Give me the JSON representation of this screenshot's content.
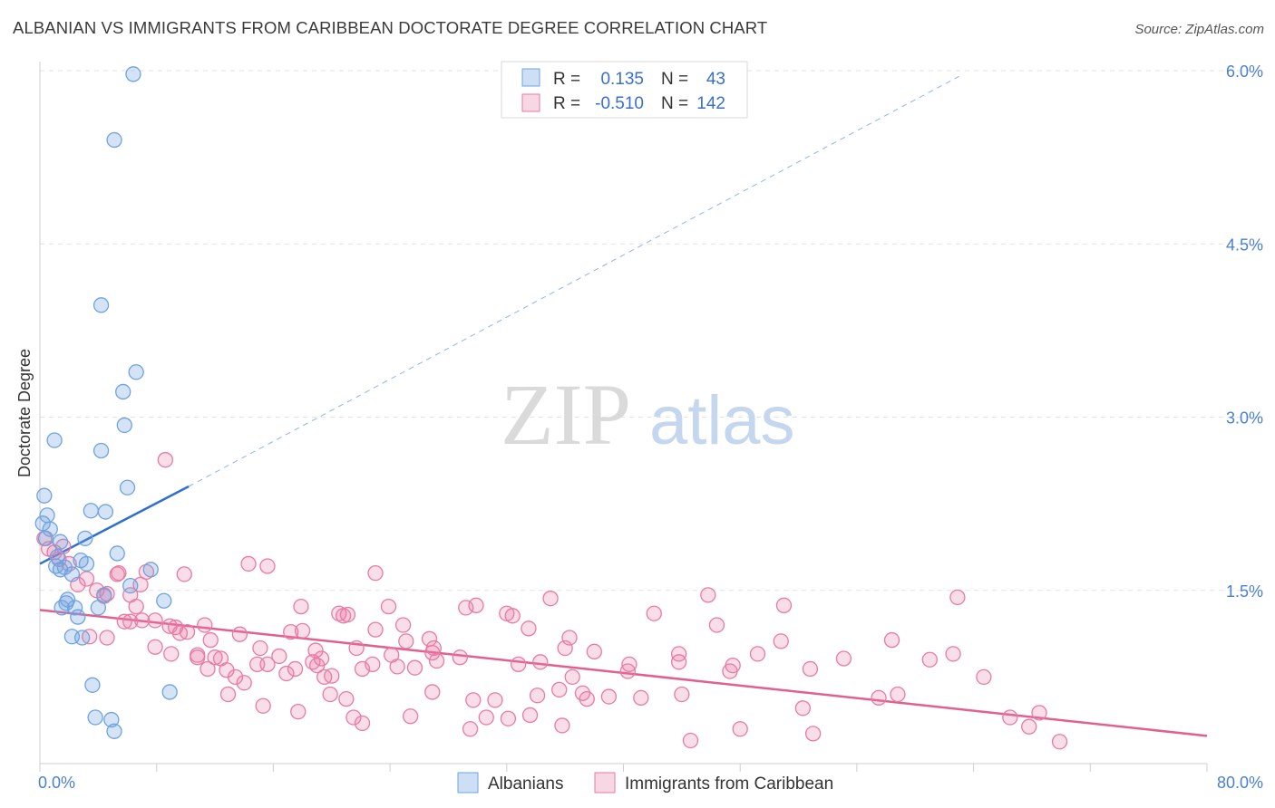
{
  "title": "ALBANIAN VS IMMIGRANTS FROM CARIBBEAN DOCTORATE DEGREE CORRELATION CHART",
  "source": "Source: ZipAtlas.com",
  "watermark": {
    "zip": "ZIP",
    "atlas": "atlas"
  },
  "colors": {
    "blue": "#6fa3e0",
    "blue_fill": "rgba(111,163,224,0.30)",
    "blue_line": "#2f6fd0",
    "pink": "#e97aa5",
    "pink_fill": "rgba(233,122,165,0.25)",
    "pink_line": "#e0608f",
    "grid": "#e3e3e3",
    "tick_text": "#4a7fd4"
  },
  "legend": {
    "rows": [
      {
        "r_label": "R =",
        "r_value": "0.135",
        "n_label": "N =",
        "n_value": "43"
      },
      {
        "r_label": "R =",
        "r_value": "-0.510",
        "n_label": "N =",
        "n_value": "142"
      }
    ]
  },
  "bottom_legend": [
    "Albanians",
    "Immigrants from Caribbean"
  ],
  "chart_data": {
    "type": "scatter",
    "ylabel": "Doctorate Degree",
    "xlim": [
      0,
      80
    ],
    "ylim": [
      0,
      6.0
    ],
    "x_tick_labels": [
      "0.0%",
      "80.0%"
    ],
    "y_ticks": [
      1.5,
      3.0,
      4.5,
      6.0
    ],
    "y_tick_labels": [
      "1.5%",
      "3.0%",
      "4.5%",
      "6.0%"
    ],
    "grid": true,
    "legend_position": "top-center",
    "series": [
      {
        "name": "Albanians",
        "r": 0.135,
        "n": 43,
        "trend": {
          "x0": 0,
          "y0": 1.73,
          "x1": 10.2,
          "y1": 2.4,
          "dash_x1": 63,
          "dash_y1": 5.95
        },
        "points": [
          [
            6.4,
            5.97
          ],
          [
            5.1,
            5.4
          ],
          [
            4.2,
            3.97
          ],
          [
            6.6,
            3.39
          ],
          [
            5.7,
            3.22
          ],
          [
            5.8,
            2.93
          ],
          [
            1.0,
            2.8
          ],
          [
            4.2,
            2.71
          ],
          [
            6.0,
            2.39
          ],
          [
            0.3,
            2.32
          ],
          [
            0.5,
            2.15
          ],
          [
            3.5,
            2.19
          ],
          [
            4.5,
            2.18
          ],
          [
            0.2,
            2.08
          ],
          [
            0.7,
            2.03
          ],
          [
            1.4,
            1.92
          ],
          [
            3.1,
            1.95
          ],
          [
            0.4,
            1.95
          ],
          [
            5.3,
            1.82
          ],
          [
            1.2,
            1.79
          ],
          [
            2.8,
            1.76
          ],
          [
            3.2,
            1.73
          ],
          [
            1.7,
            1.7
          ],
          [
            1.4,
            1.68
          ],
          [
            1.1,
            1.71
          ],
          [
            7.6,
            1.68
          ],
          [
            2.2,
            1.64
          ],
          [
            6.2,
            1.54
          ],
          [
            4.4,
            1.46
          ],
          [
            1.9,
            1.42
          ],
          [
            8.5,
            1.41
          ],
          [
            1.8,
            1.39
          ],
          [
            2.4,
            1.35
          ],
          [
            4.0,
            1.35
          ],
          [
            2.6,
            1.27
          ],
          [
            2.2,
            1.1
          ],
          [
            2.9,
            1.09
          ],
          [
            3.6,
            0.68
          ],
          [
            8.9,
            0.62
          ],
          [
            3.8,
            0.4
          ],
          [
            4.9,
            0.38
          ],
          [
            5.1,
            0.28
          ],
          [
            1.5,
            1.35
          ]
        ]
      },
      {
        "name": "Immigrants from Caribbean",
        "r": -0.51,
        "n": 142,
        "trend": {
          "x0": 0,
          "y0": 1.33,
          "x1": 80,
          "y1": 0.24
        },
        "points": [
          [
            8.6,
            2.63
          ],
          [
            0.3,
            1.95
          ],
          [
            0.6,
            1.86
          ],
          [
            1.0,
            1.83
          ],
          [
            1.6,
            1.88
          ],
          [
            1.3,
            1.77
          ],
          [
            2.0,
            1.73
          ],
          [
            3.2,
            1.6
          ],
          [
            2.6,
            1.55
          ],
          [
            4.6,
            1.47
          ],
          [
            5.3,
            1.64
          ],
          [
            5.4,
            1.65
          ],
          [
            7.3,
            1.66
          ],
          [
            9.9,
            1.64
          ],
          [
            14.3,
            1.73
          ],
          [
            15.6,
            1.71
          ],
          [
            23.0,
            1.65
          ],
          [
            3.9,
            1.5
          ],
          [
            4.4,
            1.45
          ],
          [
            6.2,
            1.46
          ],
          [
            6.6,
            1.36
          ],
          [
            7.0,
            1.24
          ],
          [
            6.9,
            1.55
          ],
          [
            7.9,
            1.24
          ],
          [
            8.9,
            1.19
          ],
          [
            9.3,
            1.18
          ],
          [
            10.1,
            1.14
          ],
          [
            11.3,
            1.2
          ],
          [
            11.7,
            1.07
          ],
          [
            12.0,
            0.92
          ],
          [
            13.7,
            1.12
          ],
          [
            17.2,
            1.14
          ],
          [
            18.0,
            1.15
          ],
          [
            17.9,
            1.36
          ],
          [
            20.5,
            1.3
          ],
          [
            20.8,
            1.28
          ],
          [
            21.1,
            1.29
          ],
          [
            23.9,
            1.36
          ],
          [
            23.0,
            1.16
          ],
          [
            24.9,
            1.2
          ],
          [
            26.7,
            1.08
          ],
          [
            26.9,
            0.96
          ],
          [
            27.0,
            1.0
          ],
          [
            29.2,
            1.35
          ],
          [
            29.9,
            1.37
          ],
          [
            32.0,
            1.3
          ],
          [
            32.4,
            1.28
          ],
          [
            35.0,
            1.43
          ],
          [
            36.3,
            1.09
          ],
          [
            36.0,
            1.0
          ],
          [
            38.0,
            0.97
          ],
          [
            40.4,
            0.86
          ],
          [
            42.1,
            1.3
          ],
          [
            43.8,
            0.95
          ],
          [
            45.8,
            1.46
          ],
          [
            46.4,
            1.2
          ],
          [
            47.5,
            0.85
          ],
          [
            49.2,
            0.95
          ],
          [
            50.8,
            1.06
          ],
          [
            51.0,
            1.37
          ],
          [
            55.1,
            0.91
          ],
          [
            58.4,
            1.07
          ],
          [
            58.8,
            0.6
          ],
          [
            62.6,
            0.95
          ],
          [
            62.9,
            1.44
          ],
          [
            64.7,
            0.75
          ],
          [
            67.8,
            0.32
          ],
          [
            68.5,
            0.44
          ],
          [
            69.9,
            0.19
          ],
          [
            66.5,
            0.4
          ],
          [
            3.4,
            1.1
          ],
          [
            4.6,
            1.09
          ],
          [
            5.8,
            1.23
          ],
          [
            6.2,
            1.23
          ],
          [
            7.9,
            1.01
          ],
          [
            9.6,
            1.13
          ],
          [
            10.8,
            0.94
          ],
          [
            11.5,
            0.82
          ],
          [
            12.8,
            0.81
          ],
          [
            12.9,
            0.6
          ],
          [
            13.4,
            0.75
          ],
          [
            14.0,
            0.7
          ],
          [
            15.1,
            1.0
          ],
          [
            15.6,
            0.86
          ],
          [
            16.4,
            0.93
          ],
          [
            17.5,
            0.82
          ],
          [
            18.7,
            0.88
          ],
          [
            19.5,
            0.75
          ],
          [
            19.3,
            0.91
          ],
          [
            20.0,
            0.76
          ],
          [
            21.0,
            0.56
          ],
          [
            21.5,
            0.4
          ],
          [
            22.1,
            0.82
          ],
          [
            22.8,
            0.86
          ],
          [
            24.1,
            0.94
          ],
          [
            24.5,
            0.84
          ],
          [
            25.1,
            1.06
          ],
          [
            25.7,
            0.83
          ],
          [
            27.2,
            0.89
          ],
          [
            28.8,
            0.92
          ],
          [
            29.7,
            0.55
          ],
          [
            30.6,
            0.4
          ],
          [
            31.2,
            0.55
          ],
          [
            32.8,
            0.86
          ],
          [
            33.5,
            1.17
          ],
          [
            34.1,
            0.59
          ],
          [
            34.3,
            0.88
          ],
          [
            35.6,
            0.64
          ],
          [
            36.5,
            0.75
          ],
          [
            37.2,
            0.61
          ],
          [
            37.5,
            0.56
          ],
          [
            39.0,
            0.58
          ],
          [
            40.3,
            0.8
          ],
          [
            41.2,
            0.57
          ],
          [
            43.8,
            0.88
          ],
          [
            47.3,
            0.8
          ],
          [
            48.0,
            0.3
          ],
          [
            52.8,
            0.82
          ],
          [
            53.0,
            0.26
          ],
          [
            57.5,
            0.57
          ],
          [
            61.0,
            0.9
          ],
          [
            52.3,
            0.48
          ],
          [
            44.0,
            0.6
          ],
          [
            17.7,
            0.45
          ],
          [
            19.9,
            0.6
          ],
          [
            22.1,
            0.35
          ],
          [
            25.4,
            0.41
          ],
          [
            26.9,
            0.62
          ],
          [
            29.5,
            0.3
          ],
          [
            32.1,
            0.39
          ],
          [
            33.6,
            0.42
          ],
          [
            35.8,
            0.33
          ],
          [
            44.6,
            0.2
          ],
          [
            15.3,
            0.5
          ],
          [
            14.9,
            0.86
          ],
          [
            9.0,
            0.95
          ],
          [
            10.8,
            0.92
          ],
          [
            12.4,
            0.91
          ],
          [
            16.9,
            0.78
          ],
          [
            19.0,
            0.85
          ],
          [
            21.7,
            1.0
          ],
          [
            18.9,
            0.98
          ]
        ]
      }
    ]
  }
}
